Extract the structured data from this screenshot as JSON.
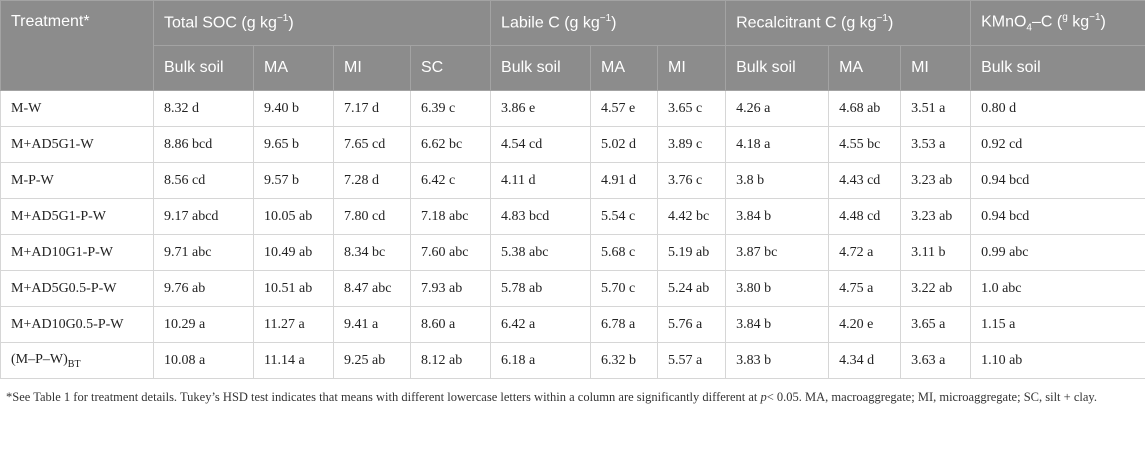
{
  "table": {
    "treatment_header": "Treatment*",
    "groups": [
      {
        "label": [
          {
            "t": "Total SOC (g kg"
          },
          {
            "t": "−1",
            "sup": true
          },
          {
            "t": ")"
          }
        ],
        "columns": [
          "Bulk soil",
          "MA",
          "MI",
          "SC"
        ]
      },
      {
        "label": [
          {
            "t": "Labile C (g kg"
          },
          {
            "t": "−1",
            "sup": true
          },
          {
            "t": ")"
          }
        ],
        "columns": [
          "Bulk soil",
          "MA",
          "MI"
        ]
      },
      {
        "label": [
          {
            "t": "Recalcitrant C (g kg"
          },
          {
            "t": "−1",
            "sup": true
          },
          {
            "t": ")"
          }
        ],
        "columns": [
          "Bulk soil",
          "MA",
          "MI"
        ]
      },
      {
        "label": [
          {
            "t": "KMnO"
          },
          {
            "t": "4",
            "sub": true
          },
          {
            "t": "–C ("
          },
          {
            "t": "g",
            "sup": true
          },
          {
            "t": " kg"
          },
          {
            "t": "−1",
            "sup": true
          },
          {
            "t": ")"
          }
        ],
        "columns": [
          "Bulk soil"
        ]
      }
    ],
    "rows": [
      [
        "M-W",
        "8.32 d",
        "9.40 b",
        "7.17 d",
        "6.39 c",
        "3.86 e",
        "4.57 e",
        "3.65 c",
        "4.26 a",
        "4.68 ab",
        "3.51 a",
        "0.80 d"
      ],
      [
        "M+AD5G1-W",
        "8.86 bcd",
        "9.65 b",
        "7.65 cd",
        "6.62 bc",
        "4.54 cd",
        "5.02 d",
        "3.89 c",
        "4.18 a",
        "4.55 bc",
        "3.53 a",
        "0.92 cd"
      ],
      [
        "M-P-W",
        "8.56 cd",
        "9.57 b",
        "7.28 d",
        "6.42 c",
        "4.11 d",
        "4.91 d",
        "3.76 c",
        "3.8 b",
        "4.43 cd",
        "3.23 ab",
        "0.94 bcd"
      ],
      [
        "M+AD5G1-P-W",
        "9.17 abcd",
        "10.05 ab",
        "7.80 cd",
        "7.18 abc",
        "4.83 bcd",
        "5.54 c",
        "4.42 bc",
        "3.84 b",
        "4.48 cd",
        "3.23 ab",
        "0.94 bcd"
      ],
      [
        "M+AD10G1-P-W",
        "9.71 abc",
        "10.49 ab",
        "8.34 bc",
        "7.60 abc",
        "5.38 abc",
        "5.68 c",
        "5.19 ab",
        "3.87 bc",
        "4.72 a",
        "3.11 b",
        "0.99 abc"
      ],
      [
        "M+AD5G0.5-P-W",
        "9.76 ab",
        "10.51 ab",
        "8.47 abc",
        "7.93 ab",
        "5.78 ab",
        "5.70 c",
        "5.24 ab",
        "3.80 b",
        "4.75 a",
        "3.22 ab",
        "1.0 abc"
      ],
      [
        "M+AD10G0.5-P-W",
        "10.29 a",
        "11.27 a",
        "9.41 a",
        "8.60 a",
        "6.42 a",
        "6.78 a",
        "5.76 a",
        "3.84 b",
        "4.20 e",
        "3.65 a",
        "1.15 a"
      ],
      [
        [
          {
            "t": "(M–P–W)"
          },
          {
            "t": "BT",
            "sub": true
          }
        ],
        "10.08 a",
        "11.14 a",
        "9.25 ab",
        "8.12 ab",
        "6.18 a",
        "6.32 b",
        "5.57 a",
        "3.83 b",
        "4.34 d",
        "3.63 a",
        "1.10 ab"
      ]
    ],
    "footnote": [
      {
        "t": "*See Table 1 for treatment details. Tukey’s HSD test indicates that means with different lowercase letters within a column are significantly different at "
      },
      {
        "t": "p",
        "italic": true
      },
      {
        "t": "< 0.05. MA, macroaggregate; MI, microaggregate; SC, silt + clay."
      }
    ]
  }
}
